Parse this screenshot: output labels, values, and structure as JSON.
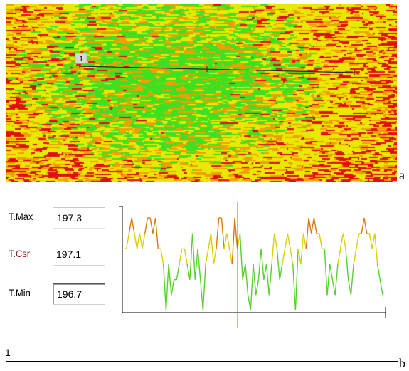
{
  "panels": {
    "a_label": "a",
    "b_label": "b"
  },
  "thermal_image": {
    "profile_line_label": "1",
    "colors": {
      "hot": "#e01010",
      "warm": "#f0a000",
      "mid": "#e8e800",
      "cool": "#40e020",
      "profile_line": "#2a2a2a"
    }
  },
  "readouts": {
    "max_label": "T.Max",
    "max_value": "197.3",
    "cursor_label": "T.Csr",
    "cursor_value": "197.1",
    "min_label": "T.Min",
    "min_value": "196.7"
  },
  "profile": {
    "marker_label": "1",
    "cursor_position": 0.44,
    "colors": {
      "cursor": "#c82828",
      "axis": "#000000",
      "hot": "#d87a10",
      "mid": "#d9d000",
      "cool": "#58d030"
    },
    "values": [
      197.1,
      197.1,
      197.2,
      197.3,
      197.2,
      197.1,
      197.2,
      197.1,
      197.2,
      197.3,
      197.3,
      197.2,
      197.3,
      197.1,
      197.1,
      197.0,
      196.7,
      197.0,
      196.8,
      196.9,
      196.9,
      197.0,
      197.1,
      197.1,
      197.0,
      196.9,
      197.2,
      196.9,
      197.1,
      196.9,
      196.7,
      197.0,
      197.1,
      197.2,
      197.0,
      197.1,
      197.3,
      197.3,
      197.1,
      197.2,
      197.1,
      197.0,
      197.3,
      197.1,
      197.2,
      196.9,
      197.0,
      196.8,
      196.7,
      197.0,
      196.8,
      196.9,
      197.1,
      196.9,
      197.0,
      196.8,
      197.0,
      197.2,
      197.1,
      196.9,
      197.0,
      197.1,
      197.2,
      197.1,
      197.0,
      196.7,
      197.1,
      197.0,
      197.2,
      197.1,
      197.3,
      197.2,
      197.3,
      197.2,
      197.2,
      197.1,
      197.1,
      196.8,
      197.0,
      196.9,
      196.8,
      197.0,
      197.1,
      197.2,
      197.1,
      196.9,
      196.8,
      197.0,
      197.1,
      197.2,
      197.2,
      197.3,
      197.2,
      197.2,
      197.1,
      197.2,
      197.0,
      196.9,
      196.8
    ]
  }
}
